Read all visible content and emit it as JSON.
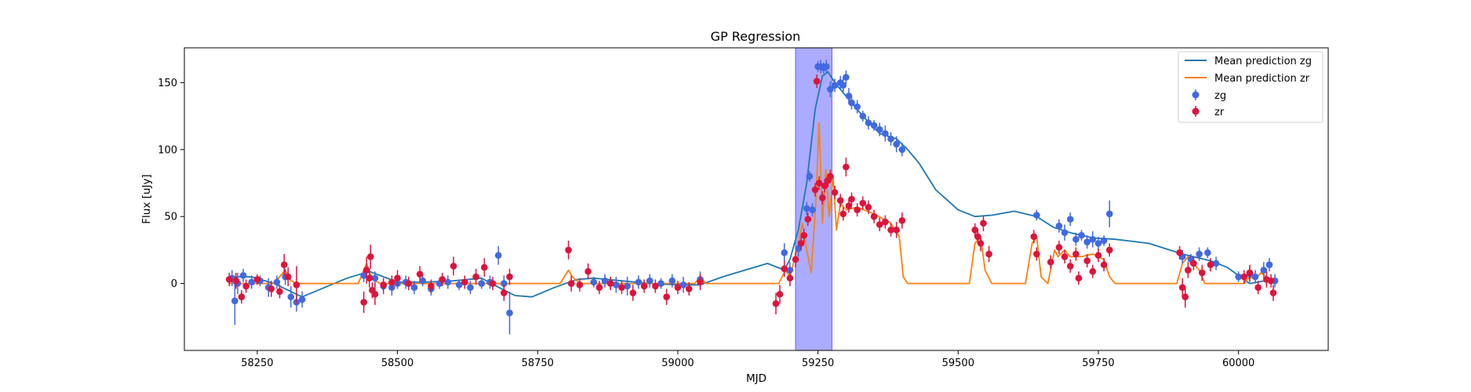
{
  "chart_data": {
    "type": "scatter",
    "title": "GP Regression",
    "xlabel": "MJD",
    "ylabel": "Flux [uJy]",
    "xlim": [
      58120,
      60160
    ],
    "ylim": [
      -50,
      176
    ],
    "xticks": [
      58250,
      58500,
      58750,
      59000,
      59250,
      59500,
      59750,
      60000
    ],
    "yticks": [
      0,
      50,
      100,
      150
    ],
    "legend_position": "upper-right",
    "grid": false,
    "colors": {
      "mean_zg": "#1f77b4",
      "mean_zr": "#ff7f0e",
      "points_zg": "#4169e1",
      "points_zr": "#dc143c",
      "span": "#6666ff"
    },
    "highlight_span": {
      "x0": 59210,
      "x1": 59275
    },
    "legend": [
      {
        "label": "Mean prediction zg",
        "kind": "line",
        "color": "#1f77b4"
      },
      {
        "label": "Mean prediction zr",
        "kind": "line",
        "color": "#ff7f0e"
      },
      {
        "label": "zg",
        "kind": "errorbar",
        "color": "#4169e1"
      },
      {
        "label": "zr",
        "kind": "errorbar",
        "color": "#dc143c"
      }
    ],
    "series": [
      {
        "name": "Mean prediction zg",
        "kind": "line",
        "x": [
          58200,
          58240,
          58280,
          58330,
          58370,
          58410,
          58450,
          58500,
          58550,
          58600,
          58650,
          58690,
          58710,
          58740,
          58780,
          58820,
          58850,
          58900,
          58950,
          59000,
          59040,
          59080,
          59120,
          59160,
          59190,
          59200,
          59215,
          59230,
          59245,
          59258,
          59268,
          59280,
          59300,
          59330,
          59360,
          59390,
          59410,
          59430,
          59460,
          59500,
          59530,
          59560,
          59600,
          59640,
          59670,
          59700,
          59740,
          59780,
          59800,
          59840,
          59900,
          59950,
          59980,
          60020,
          60060
        ],
        "y": [
          5,
          5,
          0,
          -10,
          -3,
          4,
          9,
          1,
          1,
          2,
          4,
          -5,
          -9,
          -10,
          -3,
          3,
          4,
          2,
          0,
          -1,
          -1,
          5,
          10,
          15,
          10,
          18,
          40,
          75,
          130,
          155,
          158,
          150,
          140,
          125,
          112,
          108,
          100,
          90,
          70,
          55,
          50,
          51,
          54,
          50,
          42,
          38,
          34,
          33,
          32,
          30,
          22,
          17,
          12,
          0,
          3
        ]
      },
      {
        "name": "Mean prediction zr",
        "kind": "line",
        "x": [
          58200,
          58280,
          58300,
          58310,
          58320,
          58430,
          58445,
          58450,
          58460,
          58470,
          58790,
          58805,
          58812,
          58820,
          58830,
          59030,
          59040,
          59050,
          59180,
          59192,
          59200,
          59208,
          59215,
          59222,
          59230,
          59238,
          59246,
          59252,
          59258,
          59264,
          59270,
          59277,
          59283,
          59290,
          59300,
          59320,
          59350,
          59380,
          59395,
          59402,
          59410,
          59520,
          59530,
          59540,
          59548,
          59560,
          59620,
          59632,
          59640,
          59648,
          59660,
          59672,
          59678,
          59690,
          59700,
          59720,
          59740,
          59760,
          59770,
          59780,
          59890,
          59900,
          59910,
          59930,
          59940,
          60010,
          60020,
          60030,
          60040,
          60050,
          60060
        ],
        "y": [
          0,
          0,
          10,
          2,
          0,
          0,
          15,
          8,
          2,
          0,
          0,
          10,
          5,
          2,
          0,
          0,
          5,
          0,
          0,
          10,
          5,
          18,
          30,
          45,
          25,
          8,
          60,
          120,
          45,
          85,
          50,
          80,
          40,
          60,
          55,
          57,
          52,
          45,
          35,
          5,
          0,
          0,
          30,
          35,
          10,
          0,
          0,
          30,
          35,
          5,
          0,
          25,
          20,
          25,
          20,
          20,
          22,
          18,
          5,
          0,
          0,
          15,
          20,
          10,
          0,
          0,
          5,
          3,
          8,
          5,
          0
        ]
      },
      {
        "name": "zg",
        "kind": "points",
        "points": [
          [
            58205,
            4,
            6
          ],
          [
            58210,
            -13,
            18
          ],
          [
            58215,
            0,
            8
          ],
          [
            58225,
            6,
            5
          ],
          [
            58240,
            1,
            5
          ],
          [
            58255,
            2,
            4
          ],
          [
            58270,
            -3,
            7
          ],
          [
            58285,
            1,
            5
          ],
          [
            58300,
            5,
            6
          ],
          [
            58310,
            -10,
            8
          ],
          [
            58320,
            -14,
            7
          ],
          [
            58330,
            -12,
            6
          ],
          [
            58440,
            6,
            5
          ],
          [
            58460,
            4,
            5
          ],
          [
            58475,
            -2,
            6
          ],
          [
            58490,
            -3,
            6
          ],
          [
            58500,
            0,
            4
          ],
          [
            58515,
            1,
            5
          ],
          [
            58530,
            -3,
            5
          ],
          [
            58545,
            2,
            4
          ],
          [
            58560,
            -4,
            5
          ],
          [
            58575,
            0,
            4
          ],
          [
            58590,
            1,
            5
          ],
          [
            58610,
            -1,
            4
          ],
          [
            58630,
            -3,
            5
          ],
          [
            58650,
            0,
            4
          ],
          [
            58665,
            1,
            5
          ],
          [
            58680,
            21,
            7
          ],
          [
            58690,
            0,
            6
          ],
          [
            58700,
            -22,
            16
          ],
          [
            58850,
            1,
            4
          ],
          [
            58870,
            2,
            5
          ],
          [
            58890,
            -1,
            6
          ],
          [
            58910,
            -2,
            7
          ],
          [
            58930,
            1,
            5
          ],
          [
            58950,
            2,
            5
          ],
          [
            58970,
            0,
            4
          ],
          [
            58990,
            2,
            5
          ],
          [
            59010,
            -1,
            6
          ],
          [
            59040,
            3,
            6
          ],
          [
            59190,
            23,
            7
          ],
          [
            59200,
            10,
            6
          ],
          [
            59215,
            26,
            6
          ],
          [
            59230,
            56,
            5
          ],
          [
            59235,
            80,
            4
          ],
          [
            59240,
            55,
            5
          ],
          [
            59250,
            162,
            4
          ],
          [
            59255,
            162,
            5
          ],
          [
            59260,
            161,
            4
          ],
          [
            59265,
            162,
            5
          ],
          [
            59272,
            145,
            6
          ],
          [
            59280,
            148,
            5
          ],
          [
            59290,
            150,
            5
          ],
          [
            59295,
            148,
            6
          ],
          [
            59300,
            154,
            5
          ],
          [
            59305,
            140,
            6
          ],
          [
            59310,
            135,
            5
          ],
          [
            59320,
            132,
            5
          ],
          [
            59330,
            125,
            4
          ],
          [
            59340,
            120,
            5
          ],
          [
            59350,
            118,
            4
          ],
          [
            59360,
            115,
            5
          ],
          [
            59370,
            112,
            6
          ],
          [
            59380,
            108,
            5
          ],
          [
            59390,
            104,
            6
          ],
          [
            59400,
            100,
            5
          ],
          [
            59640,
            51,
            4
          ],
          [
            59680,
            43,
            5
          ],
          [
            59690,
            38,
            6
          ],
          [
            59700,
            48,
            5
          ],
          [
            59710,
            33,
            5
          ],
          [
            59720,
            36,
            4
          ],
          [
            59730,
            31,
            5
          ],
          [
            59740,
            33,
            6
          ],
          [
            59750,
            30,
            5
          ],
          [
            59760,
            32,
            4
          ],
          [
            59770,
            52,
            10
          ],
          [
            59900,
            20,
            5
          ],
          [
            59915,
            18,
            4
          ],
          [
            59930,
            22,
            5
          ],
          [
            59945,
            23,
            4
          ],
          [
            59960,
            15,
            5
          ],
          [
            60000,
            5,
            4
          ],
          [
            60020,
            7,
            6
          ],
          [
            60030,
            5,
            5
          ],
          [
            60045,
            10,
            6
          ],
          [
            60055,
            14,
            5
          ],
          [
            60065,
            2,
            5
          ]
        ]
      },
      {
        "name": "zr",
        "kind": "points",
        "points": [
          [
            58200,
            3,
            5
          ],
          [
            58212,
            2,
            6
          ],
          [
            58222,
            -10,
            5
          ],
          [
            58230,
            -2,
            5
          ],
          [
            58250,
            3,
            4
          ],
          [
            58275,
            -4,
            6
          ],
          [
            58290,
            -6,
            5
          ],
          [
            58298,
            14,
            8
          ],
          [
            58305,
            5,
            7
          ],
          [
            58320,
            -1,
            14
          ],
          [
            58440,
            -14,
            8
          ],
          [
            58445,
            10,
            10
          ],
          [
            58450,
            4,
            7
          ],
          [
            58452,
            20,
            9
          ],
          [
            58455,
            -5,
            6
          ],
          [
            58460,
            -8,
            8
          ],
          [
            58475,
            -1,
            5
          ],
          [
            58490,
            1,
            5
          ],
          [
            58500,
            4,
            6
          ],
          [
            58520,
            0,
            5
          ],
          [
            58540,
            7,
            6
          ],
          [
            58560,
            -2,
            5
          ],
          [
            58580,
            3,
            5
          ],
          [
            58600,
            13,
            7
          ],
          [
            58620,
            1,
            5
          ],
          [
            58640,
            5,
            6
          ],
          [
            58655,
            12,
            7
          ],
          [
            58670,
            0,
            5
          ],
          [
            58690,
            -7,
            6
          ],
          [
            58700,
            5,
            6
          ],
          [
            58805,
            25,
            7
          ],
          [
            58810,
            0,
            6
          ],
          [
            58825,
            -1,
            5
          ],
          [
            58840,
            9,
            6
          ],
          [
            58860,
            -3,
            5
          ],
          [
            58880,
            0,
            5
          ],
          [
            58900,
            -3,
            5
          ],
          [
            58920,
            -7,
            6
          ],
          [
            58940,
            -2,
            5
          ],
          [
            58960,
            -2,
            5
          ],
          [
            58980,
            -10,
            6
          ],
          [
            59000,
            -3,
            5
          ],
          [
            59020,
            -4,
            5
          ],
          [
            59040,
            1,
            6
          ],
          [
            59175,
            -15,
            8
          ],
          [
            59182,
            -8,
            7
          ],
          [
            59190,
            11,
            6
          ],
          [
            59200,
            4,
            6
          ],
          [
            59210,
            18,
            6
          ],
          [
            59220,
            30,
            5
          ],
          [
            59225,
            36,
            5
          ],
          [
            59232,
            48,
            5
          ],
          [
            59245,
            70,
            5
          ],
          [
            59248,
            151,
            5
          ],
          [
            59252,
            75,
            5
          ],
          [
            59258,
            64,
            5
          ],
          [
            59262,
            73,
            5
          ],
          [
            59268,
            77,
            5
          ],
          [
            59272,
            80,
            5
          ],
          [
            59280,
            68,
            5
          ],
          [
            59290,
            62,
            5
          ],
          [
            59295,
            52,
            5
          ],
          [
            59300,
            87,
            7
          ],
          [
            59305,
            58,
            5
          ],
          [
            59310,
            63,
            5
          ],
          [
            59320,
            55,
            5
          ],
          [
            59330,
            60,
            5
          ],
          [
            59340,
            57,
            5
          ],
          [
            59350,
            50,
            5
          ],
          [
            59360,
            44,
            5
          ],
          [
            59370,
            46,
            5
          ],
          [
            59380,
            40,
            5
          ],
          [
            59390,
            40,
            6
          ],
          [
            59400,
            47,
            6
          ],
          [
            59530,
            40,
            5
          ],
          [
            59535,
            35,
            5
          ],
          [
            59540,
            30,
            6
          ],
          [
            59545,
            45,
            6
          ],
          [
            59555,
            22,
            6
          ],
          [
            59635,
            35,
            5
          ],
          [
            59640,
            22,
            5
          ],
          [
            59665,
            16,
            5
          ],
          [
            59680,
            27,
            5
          ],
          [
            59690,
            20,
            5
          ],
          [
            59700,
            13,
            5
          ],
          [
            59710,
            22,
            5
          ],
          [
            59715,
            4,
            5
          ],
          [
            59730,
            17,
            5
          ],
          [
            59740,
            9,
            5
          ],
          [
            59750,
            21,
            5
          ],
          [
            59760,
            14,
            5
          ],
          [
            59770,
            25,
            5
          ],
          [
            59895,
            23,
            5
          ],
          [
            59900,
            -3,
            7
          ],
          [
            59905,
            -10,
            8
          ],
          [
            59910,
            10,
            6
          ],
          [
            59920,
            15,
            5
          ],
          [
            59935,
            8,
            6
          ],
          [
            59950,
            14,
            5
          ],
          [
            60010,
            5,
            5
          ],
          [
            60020,
            8,
            6
          ],
          [
            60035,
            -3,
            5
          ],
          [
            60050,
            3,
            6
          ],
          [
            60058,
            2,
            5
          ],
          [
            60062,
            -7,
            6
          ]
        ]
      }
    ]
  }
}
